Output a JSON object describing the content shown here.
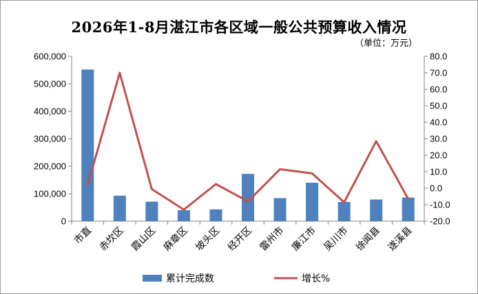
{
  "chart_data": {
    "type": "bar",
    "title": "2026年1-8月湛江市各区域一般公共预算收入情况",
    "subtitle": "（单位：万元）",
    "categories": [
      "市直",
      "赤坎区",
      "霞山区",
      "麻章区",
      "坡头区",
      "经开区",
      "雷州市",
      "廉江市",
      "吴川市",
      "徐闻县",
      "遂溪县"
    ],
    "series": [
      {
        "name": "累计完成数",
        "type": "bar",
        "axis": "left",
        "color": "#4f81bd",
        "values": [
          552000,
          93000,
          71000,
          40000,
          43000,
          172000,
          84000,
          140000,
          70000,
          79000,
          86000
        ]
      },
      {
        "name": "增长%",
        "type": "line",
        "axis": "right",
        "color": "#c0504d",
        "values": [
          2.0,
          70.0,
          -0.5,
          -13.0,
          2.5,
          -8.0,
          11.5,
          9.0,
          -8.5,
          28.5,
          -6.5
        ]
      }
    ],
    "y_left": {
      "min": 0,
      "max": 600000,
      "step": 100000,
      "tick_labels": [
        "0",
        "100,000",
        "200,000",
        "300,000",
        "400,000",
        "500,000",
        "600,000"
      ]
    },
    "y_right": {
      "min": -20,
      "max": 80,
      "step": 10,
      "tick_labels": [
        "-20.0",
        "-10.0",
        "0.0",
        "10.0",
        "20.0",
        "30.0",
        "40.0",
        "50.0",
        "60.0",
        "70.0",
        "80.0"
      ]
    },
    "grid": false,
    "legend_position": "bottom"
  }
}
